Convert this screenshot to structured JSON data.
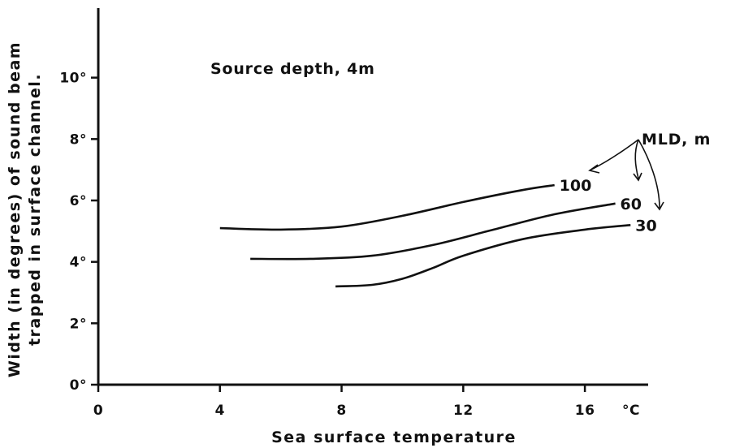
{
  "chart_data": {
    "type": "line",
    "title": "",
    "annotation": "Source depth, 4m",
    "xlabel": "Sea surface temperature",
    "x_unit": "°C",
    "ylabel_line1": "Width (in degrees) of sound beam",
    "ylabel_line2": "trapped in surface channel.",
    "xlim": [
      0,
      18
    ],
    "ylim": [
      0,
      12
    ],
    "x_ticks": [
      0,
      4,
      8,
      12,
      16
    ],
    "x_tick_labels": [
      "0",
      "4",
      "8",
      "12",
      "16"
    ],
    "y_ticks": [
      0,
      2,
      4,
      6,
      8,
      10
    ],
    "y_tick_labels": [
      "0°",
      "2°",
      "4°",
      "6°",
      "8°",
      "10°"
    ],
    "legend_title": "MLD, m",
    "series": [
      {
        "name": "100",
        "x": [
          4,
          6,
          8,
          10,
          12,
          14,
          15
        ],
        "y": [
          5.1,
          5.05,
          5.15,
          5.5,
          5.95,
          6.35,
          6.5
        ]
      },
      {
        "name": "60",
        "x": [
          5,
          7,
          9,
          11,
          13,
          15,
          17
        ],
        "y": [
          4.1,
          4.1,
          4.2,
          4.55,
          5.05,
          5.55,
          5.9
        ]
      },
      {
        "name": "30",
        "x": [
          7.8,
          9,
          10,
          11,
          12,
          14,
          16,
          17.5
        ],
        "y": [
          3.2,
          3.25,
          3.45,
          3.8,
          4.2,
          4.75,
          5.05,
          5.2
        ]
      }
    ]
  }
}
